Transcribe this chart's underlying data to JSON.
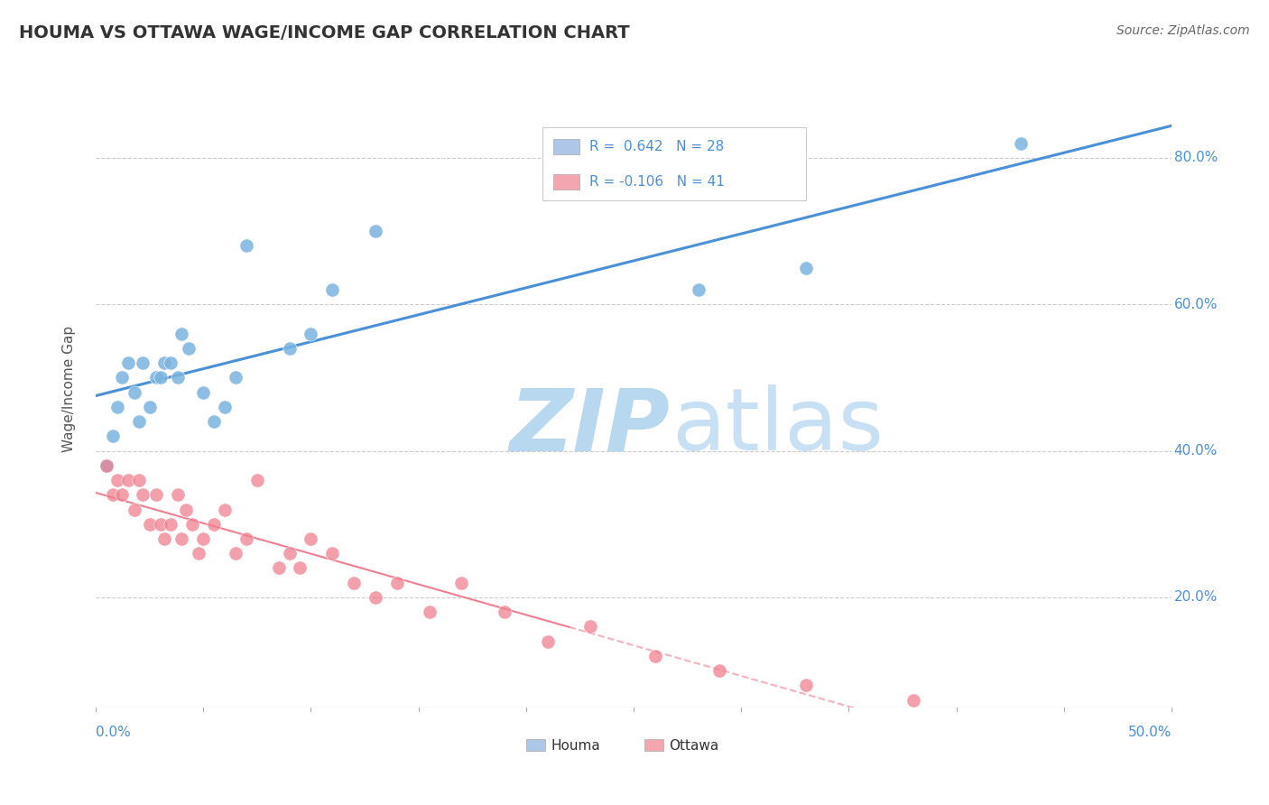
{
  "title": "HOUMA VS OTTAWA WAGE/INCOME GAP CORRELATION CHART",
  "source": "Source: ZipAtlas.com",
  "ylabel": "Wage/Income Gap",
  "right_yticks": [
    "20.0%",
    "40.0%",
    "60.0%",
    "80.0%"
  ],
  "right_ytick_vals": [
    0.2,
    0.4,
    0.6,
    0.8
  ],
  "houma_color": "#7ab3e0",
  "ottawa_color": "#f08090",
  "houma_legend_color": "#aec6e8",
  "ottawa_legend_color": "#f4a6b0",
  "trend_houma_color": "#4a90d9",
  "trend_ottawa_color": "#f08090",
  "watermark_zip_color": "#b8d8f0",
  "watermark_atlas_color": "#c8e0f4",
  "background_color": "#ffffff",
  "grid_color": "#cccccc",
  "xlim": [
    0.0,
    0.5
  ],
  "ylim": [
    0.05,
    0.92
  ],
  "houma_x": [
    0.005,
    0.008,
    0.01,
    0.012,
    0.015,
    0.018,
    0.02,
    0.022,
    0.025,
    0.028,
    0.03,
    0.032,
    0.035,
    0.038,
    0.04,
    0.043,
    0.05,
    0.055,
    0.06,
    0.065,
    0.07,
    0.09,
    0.1,
    0.11,
    0.13,
    0.28,
    0.33,
    0.43
  ],
  "houma_y": [
    0.38,
    0.42,
    0.46,
    0.5,
    0.52,
    0.48,
    0.44,
    0.52,
    0.46,
    0.5,
    0.5,
    0.52,
    0.52,
    0.5,
    0.56,
    0.54,
    0.48,
    0.44,
    0.46,
    0.5,
    0.68,
    0.54,
    0.56,
    0.62,
    0.7,
    0.62,
    0.65,
    0.82
  ],
  "ottawa_x": [
    0.005,
    0.008,
    0.01,
    0.012,
    0.015,
    0.018,
    0.02,
    0.022,
    0.025,
    0.028,
    0.03,
    0.032,
    0.035,
    0.038,
    0.04,
    0.042,
    0.045,
    0.048,
    0.05,
    0.055,
    0.06,
    0.065,
    0.07,
    0.075,
    0.085,
    0.09,
    0.095,
    0.1,
    0.11,
    0.12,
    0.13,
    0.14,
    0.155,
    0.17,
    0.19,
    0.21,
    0.23,
    0.26,
    0.29,
    0.33,
    0.38
  ],
  "ottawa_y": [
    0.38,
    0.34,
    0.36,
    0.34,
    0.36,
    0.32,
    0.36,
    0.34,
    0.3,
    0.34,
    0.3,
    0.28,
    0.3,
    0.34,
    0.28,
    0.32,
    0.3,
    0.26,
    0.28,
    0.3,
    0.32,
    0.26,
    0.28,
    0.36,
    0.24,
    0.26,
    0.24,
    0.28,
    0.26,
    0.22,
    0.2,
    0.22,
    0.18,
    0.22,
    0.18,
    0.14,
    0.16,
    0.12,
    0.1,
    0.08,
    0.06
  ]
}
